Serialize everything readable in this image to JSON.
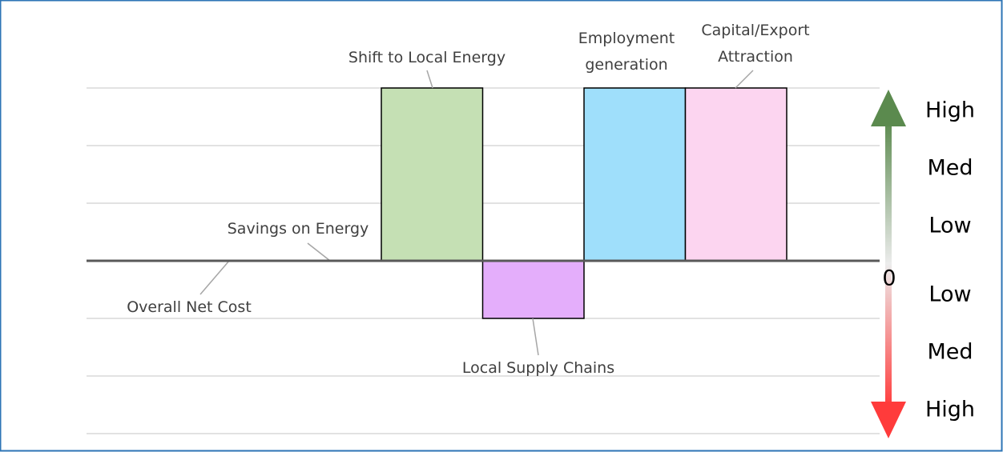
{
  "chart_data": {
    "type": "bar",
    "categories": [
      null,
      "Overall Net Cost",
      "Savings on Energy",
      "Shift to Local Energy",
      "Local Supply Chains",
      "Employment generation",
      "Capital/Export Attraction",
      null
    ],
    "values": [
      null,
      0,
      0,
      3,
      -1,
      3,
      3,
      null
    ],
    "colors": [
      null,
      "#c5e0b4",
      "#c5e0b4",
      "#c5e0b4",
      "#e4aefb",
      "#9fdffb",
      "#fcd5f0",
      null
    ],
    "ylim": [
      -3,
      3
    ],
    "yticks": [
      {
        "value": 3,
        "label": "High"
      },
      {
        "value": 2,
        "label": "Med"
      },
      {
        "value": 1,
        "label": "Low"
      },
      0,
      {
        "value": -1,
        "label": "Low"
      },
      {
        "value": -2,
        "label": "Med"
      },
      {
        "value": -3,
        "label": "High"
      }
    ],
    "grid": true
  }
}
